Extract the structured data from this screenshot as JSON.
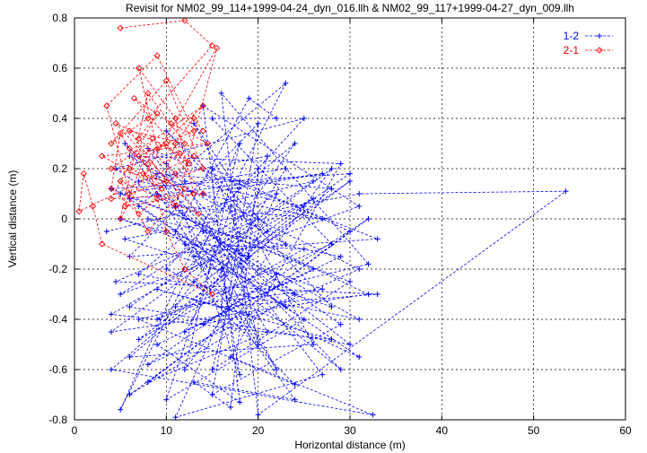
{
  "chart_data": {
    "type": "scatter",
    "title": "Revisit for NM02_99_114+1999-04-24_dyn_016.llh & NM02_99_117+1999-04-27_dyn_009.llh",
    "xlabel": "Horizontal distance (m)",
    "ylabel": "Vertical distance (m)",
    "xlim": [
      0,
      60
    ],
    "ylim": [
      -0.8,
      0.8
    ],
    "xticks": [
      "0",
      "10",
      "20",
      "30",
      "40",
      "50",
      "60"
    ],
    "yticks": [
      "-0.8",
      "-0.6",
      "-0.4",
      "-0.2",
      "0",
      "0.2",
      "0.4",
      "0.6",
      "0.8"
    ],
    "grid": true,
    "legend_position": "top-right",
    "series": [
      {
        "name": "1-2",
        "color": "#0000ff",
        "marker": "plus",
        "line": "dashed",
        "points": [
          [
            3.5,
            -0.05
          ],
          [
            26,
            0.15
          ],
          [
            6,
            -0.35
          ],
          [
            30,
            -0.5
          ],
          [
            9,
            0.1
          ],
          [
            32,
            -0.3
          ],
          [
            4,
            -0.45
          ],
          [
            28,
            0.2
          ],
          [
            12,
            -0.6
          ],
          [
            18,
            0.3
          ],
          [
            5,
            -0.76
          ],
          [
            23,
            0.54
          ],
          [
            7,
            0.05
          ],
          [
            31,
            -0.55
          ],
          [
            10,
            -0.2
          ],
          [
            25,
            0.4
          ],
          [
            4.5,
            0.2
          ],
          [
            29,
            -0.42
          ],
          [
            15,
            -0.7
          ],
          [
            20,
            0.38
          ],
          [
            6,
            -0.15
          ],
          [
            33,
            -0.08
          ],
          [
            8,
            0.28
          ],
          [
            27,
            -0.62
          ],
          [
            11,
            -0.79
          ],
          [
            22,
            0.1
          ],
          [
            5,
            -0.3
          ],
          [
            31,
            0.05
          ],
          [
            14,
            0.45
          ],
          [
            18,
            -0.73
          ],
          [
            9,
            -0.5
          ],
          [
            26,
            -0.2
          ],
          [
            4,
            0.12
          ],
          [
            30,
            0.18
          ],
          [
            13,
            -0.25
          ],
          [
            24,
            -0.66
          ],
          [
            7,
            -0.4
          ],
          [
            32,
            -0.18
          ],
          [
            16,
            0.5
          ],
          [
            20,
            -0.78
          ],
          [
            53.5,
            0.11
          ],
          [
            31,
            0.1
          ],
          [
            5.5,
            -0.08
          ],
          [
            28,
            -0.35
          ],
          [
            10,
            0.35
          ],
          [
            23,
            -0.1
          ],
          [
            6,
            0.25
          ],
          [
            29,
            0.22
          ],
          [
            17,
            -0.55
          ],
          [
            32.5,
            -0.78
          ],
          [
            4,
            -0.6
          ],
          [
            25,
            0.05
          ],
          [
            12,
            0.15
          ],
          [
            21,
            -0.45
          ],
          [
            8,
            -0.65
          ],
          [
            30,
            -0.05
          ],
          [
            15,
            0.2
          ],
          [
            19,
            -0.15
          ],
          [
            5,
            0.0
          ],
          [
            27,
            -0.28
          ],
          [
            11,
            -0.35
          ],
          [
            24,
            0.3
          ],
          [
            7,
            -0.22
          ],
          [
            31,
            -0.4
          ],
          [
            14,
            -0.05
          ],
          [
            22,
            -0.6
          ],
          [
            9,
            0.18
          ],
          [
            28,
            0.12
          ],
          [
            6,
            -0.55
          ],
          [
            26,
            -0.5
          ],
          [
            13,
            0.38
          ],
          [
            20,
            0.0
          ],
          [
            4.5,
            -0.25
          ],
          [
            33,
            -0.3
          ],
          [
            16,
            -0.35
          ],
          [
            18,
            0.15
          ],
          [
            10,
            -0.72
          ],
          [
            25,
            -0.4
          ],
          [
            8,
            0.0
          ],
          [
            29,
            -0.15
          ],
          [
            12,
            -0.45
          ],
          [
            23,
            0.2
          ],
          [
            5,
            0.1
          ],
          [
            30,
            -0.25
          ],
          [
            15,
            -0.6
          ],
          [
            21,
            0.25
          ],
          [
            7,
            0.15
          ],
          [
            27,
            0.0
          ],
          [
            11,
            0.05
          ],
          [
            24,
            -0.3
          ],
          [
            6,
            -0.7
          ],
          [
            32,
            0.0
          ],
          [
            14,
            -0.42
          ],
          [
            19,
            -0.38
          ],
          [
            9,
            -0.28
          ],
          [
            28,
            -0.48
          ],
          [
            4,
            -0.38
          ],
          [
            26,
            0.08
          ],
          [
            13,
            -0.15
          ],
          [
            22,
            -0.22
          ],
          [
            8,
            -0.58
          ],
          [
            31,
            -0.2
          ],
          [
            17,
            0.05
          ],
          [
            20,
            -0.5
          ],
          [
            5.5,
            0.3
          ],
          [
            29,
            -0.6
          ],
          [
            12,
            -0.1
          ],
          [
            25,
            -0.12
          ],
          [
            7,
            -0.48
          ],
          [
            30,
            0.15
          ],
          [
            16,
            -0.2
          ],
          [
            18,
            -0.62
          ],
          [
            10,
            0.22
          ],
          [
            23,
            -0.35
          ],
          [
            6,
            0.08
          ],
          [
            27,
            0.18
          ],
          [
            14,
            0.1
          ],
          [
            21,
            -0.05
          ],
          [
            9,
            -0.4
          ],
          [
            28,
            -0.1
          ],
          [
            15,
            0.4
          ],
          [
            22,
            0.4
          ],
          [
            19,
            0.48
          ],
          [
            11,
            -0.05
          ],
          [
            24,
            -0.72
          ],
          [
            13,
            -0.65
          ],
          [
            17,
            -0.75
          ],
          [
            20,
            0.2
          ]
        ]
      },
      {
        "name": "2-1",
        "color": "#ff0000",
        "marker": "diamond",
        "line": "dashed",
        "points": [
          [
            5,
            0.76
          ],
          [
            12,
            0.79
          ],
          [
            15,
            0.69
          ],
          [
            8,
            0.4
          ],
          [
            4,
            0.3
          ],
          [
            10,
            0.55
          ],
          [
            14,
            0.2
          ],
          [
            6,
            0.1
          ],
          [
            3.5,
            0.45
          ],
          [
            9,
            0.65
          ],
          [
            13,
            0.35
          ],
          [
            7,
            0.25
          ],
          [
            11,
            0.05
          ],
          [
            15.5,
            0.68
          ],
          [
            5,
            0.0
          ],
          [
            8,
            0.5
          ],
          [
            12,
            0.3
          ],
          [
            6,
            0.35
          ],
          [
            10,
            0.15
          ],
          [
            4,
            0.2
          ],
          [
            14,
            0.45
          ],
          [
            9,
            0.28
          ],
          [
            7,
            0.6
          ],
          [
            11,
            0.4
          ],
          [
            13,
            0.1
          ],
          [
            5.5,
            0.05
          ],
          [
            8.5,
            0.32
          ],
          [
            12.5,
            0.22
          ],
          [
            6.5,
            0.48
          ],
          [
            10.5,
            0.38
          ],
          [
            14.5,
            0.3
          ],
          [
            3,
            0.25
          ],
          [
            9.5,
            0.12
          ],
          [
            7.5,
            0.18
          ],
          [
            11.5,
            0.26
          ],
          [
            4.5,
            0.38
          ],
          [
            13.5,
            0.02
          ],
          [
            5,
            0.15
          ],
          [
            8,
            -0.05
          ],
          [
            12,
            0.12
          ],
          [
            6,
            0.2
          ],
          [
            10,
            0.3
          ],
          [
            14,
            0.1
          ],
          [
            4,
            0.08
          ],
          [
            9,
            0.42
          ],
          [
            7,
            0.32
          ],
          [
            11,
            0.18
          ],
          [
            13,
            0.25
          ],
          [
            0.5,
            0.03
          ],
          [
            1,
            0.18
          ],
          [
            2,
            0.05
          ],
          [
            3,
            -0.1
          ],
          [
            15,
            -0.3
          ],
          [
            12,
            -0.2
          ],
          [
            10,
            -0.05
          ],
          [
            8,
            0.22
          ],
          [
            6,
            0.28
          ],
          [
            5,
            0.34
          ],
          [
            4,
            0.12
          ],
          [
            7,
            0.02
          ],
          [
            9,
            0.08
          ],
          [
            11,
            0.3
          ],
          [
            13,
            0.4
          ],
          [
            14,
            0.35
          ]
        ]
      }
    ]
  }
}
